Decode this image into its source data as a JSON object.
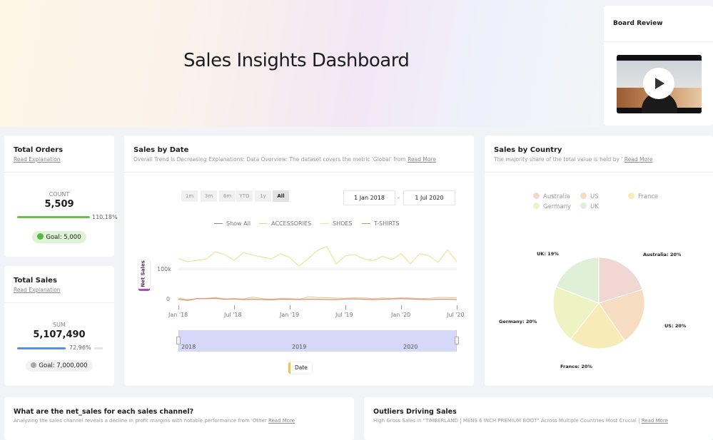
{
  "hero": {
    "title": "Sales Insights Dashboard"
  },
  "board": {
    "title": "Board Review",
    "video_icon": "play-icon"
  },
  "orders": {
    "title": "Total Orders",
    "link": "Read Explanation",
    "label": "COUNT",
    "value": "5,509",
    "progress_pct": "110.18%",
    "progress": 1.0,
    "goal": "Goal: 5,000",
    "color": "#6cc04a"
  },
  "sales": {
    "title": "Total Sales",
    "link": "Read Explanation",
    "label": "SUM",
    "value": "5,107,490",
    "progress_pct": "72.96%",
    "progress": 0.7296,
    "goal": "Goal: 7,000,000",
    "color": "#5b8de0"
  },
  "by_date": {
    "title": "Sales by Date",
    "subtitle": "Overall Trend Is Decreasing Explanations: Data Overview: The dataset covers the metric 'Global' from",
    "link": "Read More",
    "ranges": [
      "1m",
      "3m",
      "6m",
      "YTD",
      "1y",
      "All"
    ],
    "active_range": "All",
    "date_from": "1 Jan 2018",
    "date_sep": "-",
    "date_to": "1 Jul 2020",
    "legend": [
      "Show All",
      "ACCESSORIES",
      "SHOES",
      "T-SHIRTS"
    ],
    "y_label": "Net Sales",
    "x_label": "Date",
    "navigator_years": [
      "2018",
      "2019",
      "2020"
    ]
  },
  "chart_data": [
    {
      "type": "line",
      "ylabel": "Net Sales",
      "xlabel": "Date",
      "x_ticks": [
        "Jan '18",
        "Jul '18",
        "Jan '19",
        "Jul '19",
        "Jan '20",
        "Jul '20"
      ],
      "y_ticks": [
        "0",
        "100k"
      ],
      "ylim": [
        0,
        200000
      ],
      "x_range": [
        "2018-01",
        "2020-07"
      ],
      "series": [
        {
          "name": "SHOES",
          "color": "#ede49a",
          "values": [
            137000,
            126000,
            131000,
            135000,
            159000,
            150000,
            131000,
            157000,
            148000,
            142000,
            135000,
            153000,
            140000,
            112000,
            137000,
            164000,
            177000,
            119000,
            146000,
            150000,
            135000,
            130000,
            144000,
            133000,
            153000,
            119000,
            153000,
            146000,
            124000,
            166000,
            126000
          ]
        },
        {
          "name": "ACCESSORIES",
          "color": "#f0c9a0",
          "values": [
            5000,
            0,
            3000,
            4000,
            7000,
            2000,
            3000,
            2000,
            8000,
            3000,
            1000,
            4000,
            3000,
            1000,
            9000,
            7000,
            6000,
            5000,
            4000,
            6000,
            5000,
            3000,
            5000,
            4000,
            6000,
            5000,
            3000,
            4000,
            7000,
            7000,
            6000
          ]
        },
        {
          "name": "T-SHIRTS",
          "color": "#d9906e",
          "values": [
            1000,
            -3000,
            3000,
            3000,
            4000,
            1000,
            2000,
            0,
            1000,
            0,
            -1000,
            1000,
            1000,
            0,
            1000,
            1000,
            0,
            0,
            2000,
            2000,
            1000,
            0,
            1000,
            2000,
            3000,
            2000,
            1000,
            0,
            1000,
            1000,
            0
          ]
        }
      ]
    },
    {
      "type": "pie",
      "title": "Sales by Country",
      "legend": "top",
      "slices": [
        {
          "label": "Australia",
          "value": 20,
          "text": "Australia: 20%",
          "color": "#f1d7d2"
        },
        {
          "label": "US",
          "value": 20,
          "text": "US: 20%",
          "color": "#f6dcc0"
        },
        {
          "label": "France",
          "value": 20,
          "text": "France: 20%",
          "color": "#f7ebb8"
        },
        {
          "label": "Germany",
          "value": 20,
          "text": "Germany: 20%",
          "color": "#eef3c4"
        },
        {
          "label": "UK",
          "value": 19,
          "text": "UK: 19%",
          "color": "#e0f0d8"
        }
      ]
    }
  ],
  "by_country": {
    "title": "Sales by Country",
    "subtitle": "The majority share of the total value is held by '",
    "link": "Read More"
  },
  "channel": {
    "title": "What are the net_sales for each sales channel?",
    "subtitle": "Analyzing the sales channel reveals a decline in profit margins with notable performance from 'Other",
    "link": "Read More"
  },
  "outliers": {
    "title": "Outliers Driving Sales",
    "subtitle": "High Gross Sales in \"TIMBERLAND | MENS 6 INCH PREMIUM BOOT\" Across Multiple Countries Most Crucial |",
    "link": "Read More"
  }
}
